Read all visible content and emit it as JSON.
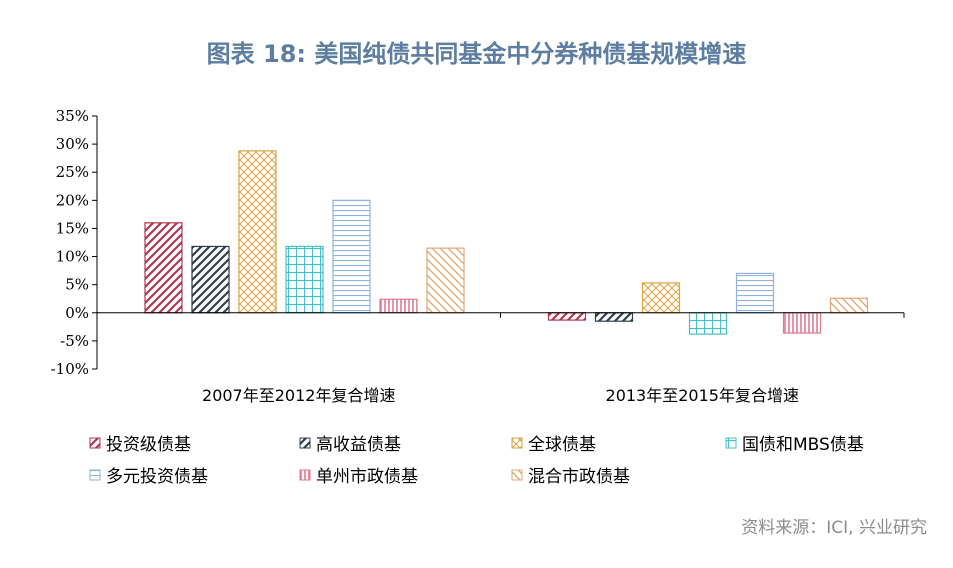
{
  "title": "图表 18: 美国纯债共同基金中分券种债基规模增速",
  "source": "资料来源：ICI, 兴业研究",
  "chart_data": {
    "type": "bar",
    "title": "图表 18: 美国纯债共同基金中分券种债基规模增速",
    "categories": [
      "2007年至2012年复合增速",
      "2013年至2015年复合增速"
    ],
    "ylim": [
      -10,
      35
    ],
    "yticks": [
      "35%",
      "30%",
      "25%",
      "20%",
      "15%",
      "10%",
      "5%",
      "0%",
      "-5%",
      "-10%"
    ],
    "ytick_values": [
      35,
      30,
      25,
      20,
      15,
      10,
      5,
      0,
      -5,
      -10
    ],
    "grid": false,
    "legend_position": "bottom",
    "series": [
      {
        "name": "投资级债基",
        "values": [
          16,
          -1.3
        ],
        "color": "#b0374e",
        "pattern": "diag-down"
      },
      {
        "name": "高收益债基",
        "values": [
          11.8,
          -1.5
        ],
        "color": "#2f3e4f",
        "pattern": "diag-down"
      },
      {
        "name": "全球债基",
        "values": [
          28.8,
          5.3
        ],
        "color": "#d9a441",
        "pattern": "crosshatch"
      },
      {
        "name": "国债和MBS债基",
        "values": [
          11.8,
          -3.8
        ],
        "color": "#45c2c7",
        "pattern": "grid"
      },
      {
        "name": "多元投资债基",
        "values": [
          20,
          7
        ],
        "color": "#8fb3d9",
        "pattern": "horizontal"
      },
      {
        "name": "单州市政债基",
        "values": [
          2.4,
          -3.6
        ],
        "color": "#e07a90",
        "pattern": "vertical"
      },
      {
        "name": "混合市政债基",
        "values": [
          11.5,
          2.6
        ],
        "color": "#e0a878",
        "pattern": "diag-up"
      }
    ]
  }
}
